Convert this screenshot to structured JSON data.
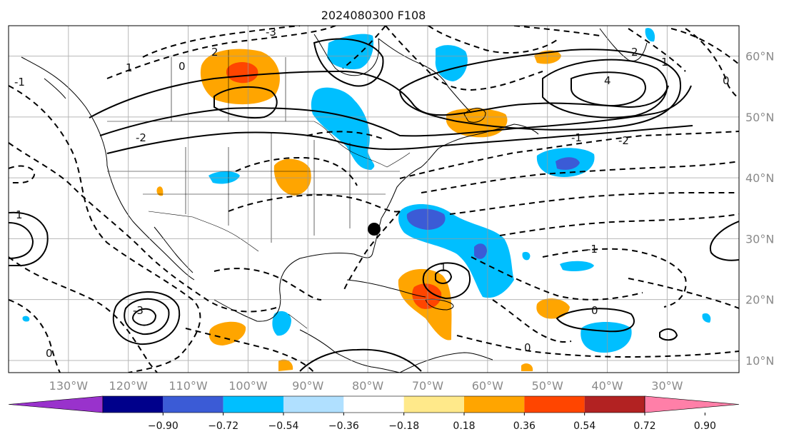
{
  "title": "2024080300 F108",
  "map": {
    "lon_range": [
      -140,
      -18
    ],
    "lat_range": [
      8,
      65
    ],
    "lon_labels": [
      "130°W",
      "120°W",
      "110°W",
      "100°W",
      "90°W",
      "80°W",
      "70°W",
      "60°W",
      "50°W",
      "40°W",
      "30°W"
    ],
    "lat_labels": [
      "10°N",
      "20°N",
      "30°N",
      "40°N",
      "50°N",
      "60°N"
    ],
    "grid": true,
    "contour_labels": [
      "2",
      "1",
      "0",
      "-1",
      "-2",
      "-3",
      "4",
      "1",
      "2",
      "0",
      "-1",
      "-2",
      "-3",
      "1",
      "0",
      "0",
      "-1",
      "1",
      "0"
    ],
    "marker": "filled black circle near 79°W, 30.5°N"
  },
  "colorbar": {
    "colors": [
      "#9932cc",
      "#00008b",
      "#3b5bd6",
      "#00bfff",
      "#b0e0ff",
      "#ffffff",
      "#ffe98a",
      "#ffa500",
      "#ff4500",
      "#b22222",
      "#ff7fa8"
    ],
    "tick_labels": [
      "−0.90",
      "−0.72",
      "−0.54",
      "−0.36",
      "−0.18",
      "0.18",
      "0.36",
      "0.54",
      "0.72",
      "0.90"
    ],
    "extend": "both"
  }
}
